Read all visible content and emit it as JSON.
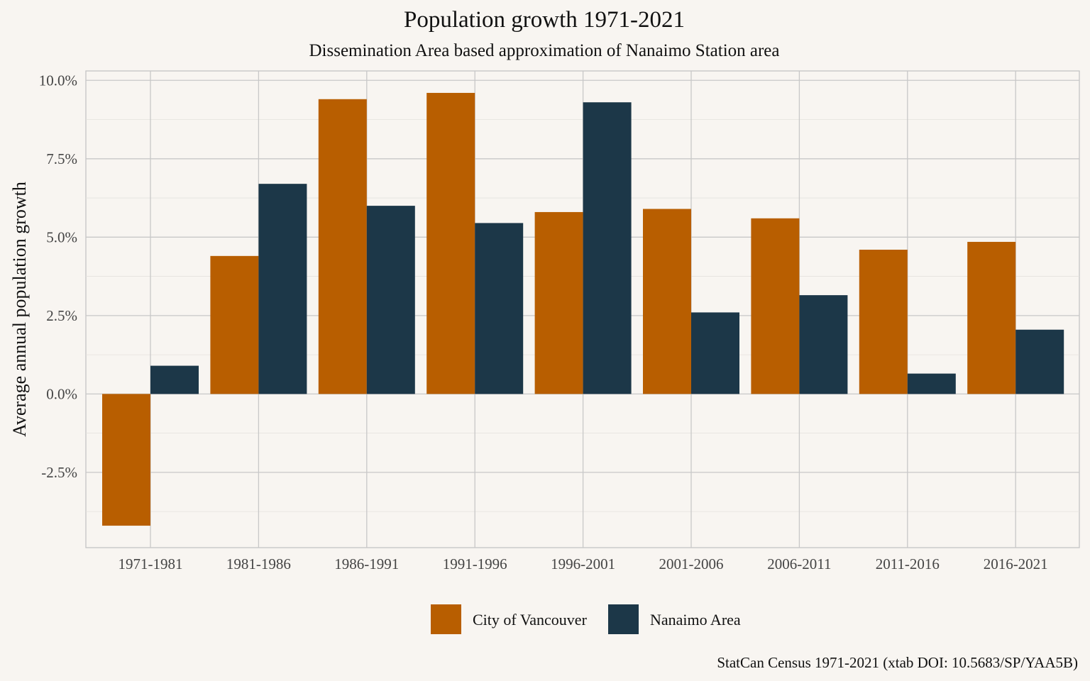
{
  "chart_data": {
    "type": "bar",
    "title": "Population growth 1971-2021",
    "subtitle": "Dissemination Area based approximation of Nanaimo Station area",
    "xlabel": "",
    "ylabel": "Average annual population growth",
    "caption": "StatCan Census 1971-2021 (xtab DOI: 10.5683/SP/YAA5B)",
    "categories": [
      "1971-1981",
      "1981-1986",
      "1986-1991",
      "1991-1996",
      "1996-2001",
      "2001-2006",
      "2006-2011",
      "2011-2016",
      "2016-2021"
    ],
    "series": [
      {
        "name": "City of Vancouver",
        "color": "#b85e00",
        "values": [
          -4.2,
          4.4,
          9.4,
          9.6,
          5.8,
          5.9,
          5.6,
          4.6,
          4.85
        ]
      },
      {
        "name": "Nanaimo Area",
        "color": "#1c3748",
        "values": [
          0.9,
          6.7,
          6.0,
          5.45,
          9.3,
          2.6,
          3.15,
          0.65,
          2.05
        ]
      }
    ],
    "ylim": [
      -4.9,
      10.3
    ],
    "yticks": [
      -2.5,
      0,
      2.5,
      5,
      7.5,
      10
    ],
    "ytick_labels": [
      "-2.5%",
      "0.0%",
      "2.5%",
      "5.0%",
      "7.5%",
      "10.0%"
    ],
    "grid": true,
    "legend_position": "bottom"
  }
}
